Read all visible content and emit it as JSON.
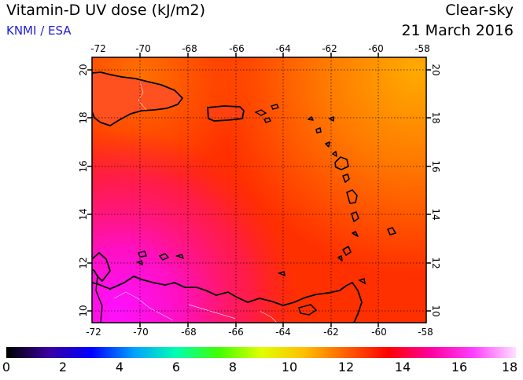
{
  "header": {
    "title": "Vitamin-D UV dose (kJ/m2)",
    "credit": "KNMI / ESA",
    "condition": "Clear-sky",
    "date": "21 March 2016"
  },
  "map": {
    "lon_ticks": [
      "-72",
      "-70",
      "-68",
      "-66",
      "-64",
      "-62",
      "-60",
      "-58"
    ],
    "lat_ticks": [
      "10",
      "12",
      "14",
      "16",
      "18",
      "20"
    ],
    "lon_range": [
      -72,
      -58
    ],
    "lat_range": [
      9.5,
      20.5
    ],
    "gridlines": "dotted"
  },
  "colorbar": {
    "labels": [
      "0",
      "2",
      "4",
      "6",
      "8",
      "10",
      "12",
      "14",
      "16",
      "18"
    ],
    "range": [
      0,
      18
    ],
    "stops": [
      "#000000",
      "#3a00a0",
      "#0000ff",
      "#00a0ff",
      "#00ffb0",
      "#40ff00",
      "#e0ff00",
      "#ffc000",
      "#ff6000",
      "#ff0000",
      "#ff00a0",
      "#ff40ff",
      "#ffe0ff"
    ]
  }
}
